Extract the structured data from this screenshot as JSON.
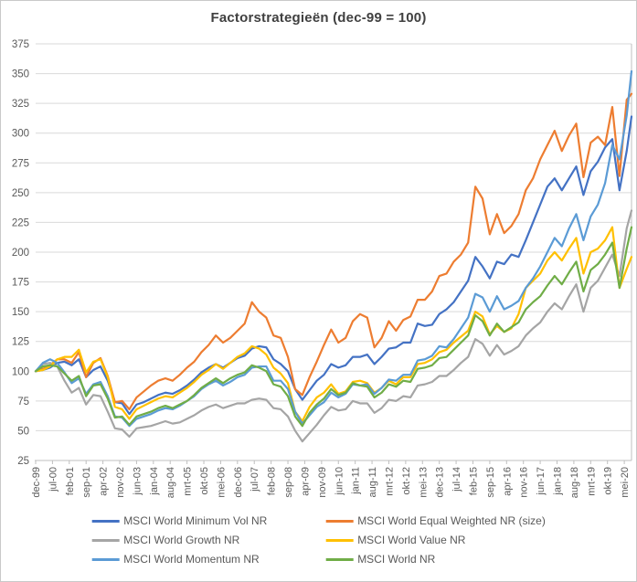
{
  "title": "Factorstrategieën (dec-99 = 100)",
  "colors": {
    "gridline": "#d9d9d9",
    "axis_line": "#bfbfbf",
    "axis_text": "#595959",
    "title_text": "#404040",
    "frame_border": "#c9c9c9",
    "background": "#ffffff"
  },
  "chart_data": {
    "type": "line",
    "title": "Factorstrategieën (dec-99 = 100)",
    "xlabel": "",
    "ylabel": "",
    "grid": "horizontal",
    "legend_position": "bottom",
    "legend_columns": 2,
    "y_axis": {
      "min": 25,
      "max": 375,
      "step": 25,
      "tick_labels": [
        "25",
        "50",
        "75",
        "100",
        "125",
        "150",
        "175",
        "200",
        "225",
        "250",
        "275",
        "300",
        "325",
        "350",
        "375"
      ]
    },
    "x_axis": {
      "unit": "months since dec-99",
      "total_months": 249,
      "label_every_months": 7,
      "tick_labels": [
        "dec-99",
        "jul-00",
        "feb-01",
        "sep-01",
        "apr-02",
        "nov-02",
        "jun-03",
        "jan-04",
        "aug-04",
        "mrt-05",
        "okt-05",
        "mei-06",
        "dec-06",
        "jul-07",
        "feb-08",
        "sep-08",
        "apr-09",
        "nov-09",
        "jun-10",
        "jan-11",
        "aug-11",
        "mrt-12",
        "okt-12",
        "mei-13",
        "dec-13",
        "jul-14",
        "feb-15",
        "sep-15",
        "apr-16",
        "nov-16",
        "jun-17",
        "jan-18",
        "aug-18",
        "mrt-19",
        "okt-19",
        "mei-20"
      ]
    },
    "sample_month_indices": [
      0,
      3,
      6,
      9,
      12,
      15,
      18,
      21,
      24,
      27,
      30,
      33,
      36,
      39,
      42,
      45,
      48,
      51,
      54,
      57,
      60,
      63,
      66,
      69,
      72,
      75,
      78,
      81,
      84,
      87,
      90,
      93,
      96,
      99,
      102,
      105,
      108,
      111,
      114,
      117,
      120,
      123,
      126,
      129,
      132,
      135,
      138,
      141,
      144,
      147,
      150,
      153,
      156,
      159,
      162,
      165,
      168,
      171,
      174,
      177,
      180,
      183,
      186,
      189,
      192,
      195,
      198,
      201,
      204,
      207,
      210,
      213,
      216,
      219,
      222,
      225,
      228,
      231,
      234,
      237,
      240,
      243,
      246,
      248
    ],
    "series": [
      {
        "name": "MSCI World Minimum Vol NR",
        "color": "#4472C4",
        "values": [
          100,
          101,
          103,
          107,
          108,
          105,
          110,
          95,
          101,
          104,
          92,
          74,
          73,
          64,
          72,
          74,
          77,
          80,
          82,
          81,
          84,
          88,
          93,
          99,
          103,
          106,
          103,
          107,
          111,
          113,
          119,
          121,
          120,
          110,
          106,
          100,
          85,
          76,
          84,
          92,
          97,
          106,
          103,
          105,
          112,
          112,
          114,
          106,
          112,
          119,
          120,
          124,
          124,
          140,
          138,
          139,
          148,
          152,
          158,
          167,
          176,
          196,
          188,
          178,
          192,
          190,
          198,
          196,
          210,
          225,
          240,
          255,
          262,
          252,
          262,
          272,
          248,
          268,
          276,
          288,
          295,
          252,
          285,
          314
        ]
      },
      {
        "name": "MSCI World Equal Weighted NR (size)",
        "color": "#ED7D31",
        "values": [
          100,
          102,
          105,
          110,
          110,
          107,
          116,
          95,
          107,
          111,
          96,
          74,
          75,
          68,
          78,
          83,
          88,
          92,
          94,
          92,
          97,
          103,
          108,
          116,
          122,
          130,
          124,
          128,
          134,
          140,
          158,
          150,
          145,
          130,
          128,
          112,
          85,
          80,
          95,
          108,
          122,
          135,
          124,
          128,
          142,
          148,
          145,
          120,
          128,
          142,
          134,
          143,
          146,
          160,
          160,
          167,
          180,
          182,
          192,
          198,
          208,
          255,
          245,
          215,
          232,
          216,
          222,
          232,
          252,
          262,
          278,
          290,
          302,
          285,
          298,
          308,
          263,
          292,
          297,
          290,
          322,
          264,
          328,
          333
        ]
      },
      {
        "name": "MSCI World Growth NR",
        "color": "#A5A5A5",
        "values": [
          100,
          106,
          107,
          104,
          92,
          82,
          86,
          72,
          80,
          79,
          66,
          52,
          51,
          45,
          52,
          53,
          54,
          56,
          58,
          56,
          57,
          60,
          63,
          67,
          70,
          72,
          69,
          71,
          73,
          73,
          76,
          77,
          76,
          69,
          68,
          62,
          50,
          41,
          48,
          55,
          63,
          70,
          67,
          68,
          75,
          73,
          73,
          65,
          69,
          76,
          75,
          79,
          78,
          88,
          89,
          91,
          96,
          96,
          101,
          107,
          112,
          127,
          123,
          113,
          122,
          114,
          117,
          121,
          130,
          136,
          141,
          150,
          157,
          152,
          163,
          173,
          150,
          170,
          176,
          187,
          198,
          180,
          220,
          235
        ]
      },
      {
        "name": "MSCI World Value NR",
        "color": "#FFC000",
        "values": [
          100,
          101,
          104,
          110,
          112,
          112,
          118,
          99,
          108,
          110,
          95,
          70,
          68,
          60,
          68,
          71,
          74,
          77,
          79,
          78,
          82,
          86,
          91,
          97,
          101,
          106,
          102,
          107,
          112,
          115,
          121,
          119,
          114,
          103,
          98,
          90,
          66,
          58,
          70,
          78,
          82,
          89,
          81,
          83,
          91,
          92,
          90,
          82,
          86,
          92,
          89,
          95,
          95,
          106,
          107,
          110,
          116,
          118,
          124,
          129,
          134,
          150,
          146,
          131,
          138,
          133,
          136,
          148,
          170,
          176,
          182,
          193,
          200,
          193,
          203,
          212,
          182,
          200,
          203,
          210,
          221,
          170,
          186,
          196
        ]
      },
      {
        "name": "MSCI World Momentum NR",
        "color": "#5B9BD5",
        "values": [
          100,
          107,
          110,
          107,
          99,
          90,
          94,
          81,
          89,
          91,
          79,
          62,
          61,
          54,
          60,
          62,
          64,
          67,
          69,
          68,
          71,
          75,
          79,
          85,
          89,
          92,
          88,
          91,
          95,
          97,
          103,
          104,
          104,
          92,
          92,
          85,
          66,
          56,
          63,
          70,
          74,
          82,
          78,
          81,
          89,
          88,
          89,
          81,
          86,
          93,
          92,
          97,
          97,
          109,
          110,
          113,
          121,
          120,
          127,
          136,
          145,
          165,
          162,
          150,
          163,
          152,
          155,
          159,
          170,
          178,
          188,
          200,
          212,
          205,
          220,
          232,
          210,
          230,
          240,
          258,
          290,
          278,
          315,
          352
        ]
      },
      {
        "name": "MSCI World NR",
        "color": "#70AD47",
        "values": [
          100,
          104,
          105,
          104,
          98,
          92,
          96,
          79,
          88,
          89,
          77,
          61,
          62,
          55,
          62,
          64,
          66,
          69,
          71,
          69,
          72,
          75,
          80,
          86,
          90,
          94,
          90,
          94,
          97,
          99,
          105,
          103,
          100,
          89,
          87,
          79,
          62,
          54,
          65,
          72,
          77,
          85,
          80,
          82,
          90,
          88,
          87,
          78,
          82,
          89,
          87,
          92,
          91,
          102,
          103,
          105,
          111,
          112,
          118,
          124,
          130,
          147,
          142,
          130,
          140,
          133,
          137,
          141,
          152,
          158,
          163,
          172,
          180,
          173,
          183,
          192,
          167,
          185,
          190,
          198,
          208,
          170,
          203,
          221
        ]
      }
    ]
  }
}
